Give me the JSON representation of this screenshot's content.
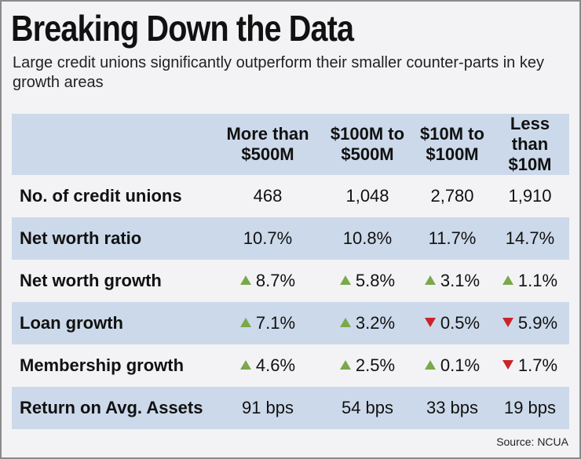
{
  "title": "Breaking Down the Data",
  "subtitle": "Large credit unions significantly outperform their smaller counter-parts in key growth areas",
  "source": "Source: NCUA",
  "colors": {
    "header_bg": "#ccd9ea",
    "up": "#7aa84a",
    "down": "#cc2229"
  },
  "chart_data": {
    "type": "table",
    "title": "Breaking Down the Data",
    "columns": [
      {
        "line1": "More than",
        "line2": "$500M"
      },
      {
        "line1": "$100M to",
        "line2": "$500M"
      },
      {
        "line1": "$10M to",
        "line2": "$100M"
      },
      {
        "line1": "Less than",
        "line2": "$10M"
      }
    ],
    "rows": [
      {
        "label": "No. of credit unions",
        "cells": [
          {
            "value": "468"
          },
          {
            "value": "1,048"
          },
          {
            "value": "2,780"
          },
          {
            "value": "1,910"
          }
        ]
      },
      {
        "label": "Net worth ratio",
        "cells": [
          {
            "value": "10.7%"
          },
          {
            "value": "10.8%"
          },
          {
            "value": "11.7%"
          },
          {
            "value": "14.7%"
          }
        ]
      },
      {
        "label": "Net worth growth",
        "cells": [
          {
            "value": "8.7%",
            "trend": "up"
          },
          {
            "value": "5.8%",
            "trend": "up"
          },
          {
            "value": "3.1%",
            "trend": "up"
          },
          {
            "value": "1.1%",
            "trend": "up"
          }
        ]
      },
      {
        "label": "Loan growth",
        "cells": [
          {
            "value": "7.1%",
            "trend": "up"
          },
          {
            "value": "3.2%",
            "trend": "up"
          },
          {
            "value": "0.5%",
            "trend": "down"
          },
          {
            "value": "5.9%",
            "trend": "down"
          }
        ]
      },
      {
        "label": "Membership growth",
        "cells": [
          {
            "value": "4.6%",
            "trend": "up"
          },
          {
            "value": "2.5%",
            "trend": "up"
          },
          {
            "value": "0.1%",
            "trend": "up"
          },
          {
            "value": "1.7%",
            "trend": "down"
          }
        ]
      },
      {
        "label": "Return on Avg. Assets",
        "cells": [
          {
            "value": "91 bps"
          },
          {
            "value": "54 bps"
          },
          {
            "value": "33 bps"
          },
          {
            "value": "19 bps"
          }
        ]
      }
    ]
  }
}
